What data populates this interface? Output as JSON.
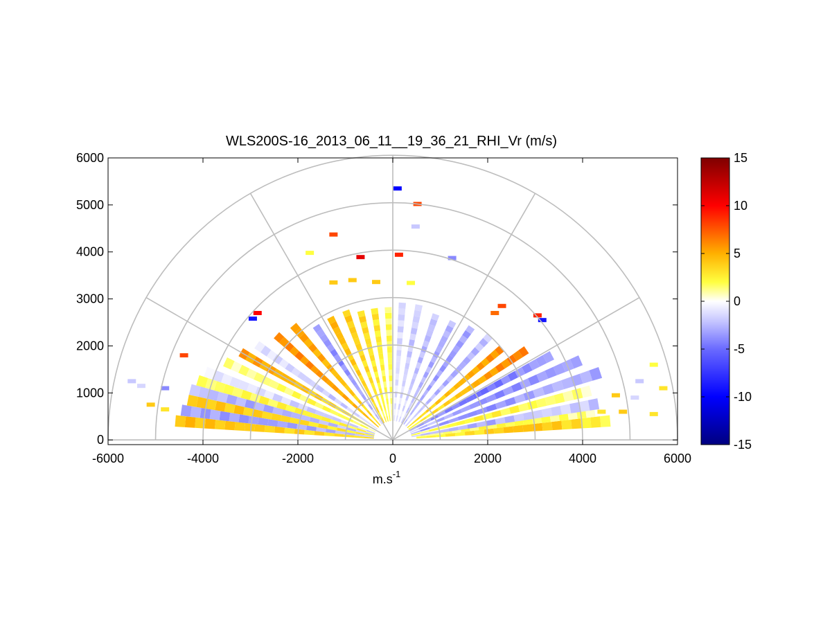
{
  "chart_data": {
    "type": "heatmap",
    "subtype": "polar-rhi",
    "title": "WLS200S-16_2013_06_11__19_36_21_RHI_Vr (m/s)",
    "xlabel": "m.s",
    "xlabel_superscript": "-1",
    "ylabel": "",
    "xlim": [
      -6000,
      6000
    ],
    "ylim": [
      -100,
      6000
    ],
    "x_ticks": [
      -6000,
      -4000,
      -2000,
      0,
      2000,
      4000,
      6000
    ],
    "x_tick_labels": [
      "-6000",
      "-4000",
      "-2000",
      "0",
      "2000",
      "4000",
      "6000"
    ],
    "y_ticks": [
      0,
      1000,
      2000,
      3000,
      4000,
      5000,
      6000
    ],
    "y_tick_labels": [
      "0",
      "1000",
      "2000",
      "3000",
      "4000",
      "5000",
      "6000"
    ],
    "polar_grid": {
      "range_rings": [
        1000,
        2000,
        3000,
        4000,
        5000,
        6000
      ],
      "spoke_angles_deg": [
        0,
        30,
        60,
        90,
        120,
        150,
        180
      ]
    },
    "colorbar": {
      "range": [
        -15,
        15
      ],
      "ticks": [
        15,
        10,
        5,
        0,
        -5,
        -10,
        -15
      ],
      "tick_labels": [
        "15",
        "10",
        "5",
        "0",
        "-5",
        "-10",
        "-15"
      ],
      "colors": {
        "-15": "#00007f",
        "-10": "#0000ff",
        "-5": "#6a6aff",
        "-2": "#c8c8ff",
        "0": "#ffffff",
        "2": "#ffff40",
        "5": "#ffb000",
        "10": "#ff0000",
        "15": "#7f0000"
      }
    },
    "rays": [
      {
        "elevation_deg": 5,
        "range_m": [
          500,
          4600
        ],
        "values": [
          2,
          2.5,
          3,
          4,
          4.5,
          4,
          3,
          2
        ]
      },
      {
        "elevation_deg": 8,
        "range_m": [
          500,
          4300
        ],
        "values": [
          1,
          1.5,
          2,
          2,
          1.5,
          1
        ]
      },
      {
        "elevation_deg": 10,
        "range_m": [
          400,
          4400
        ],
        "values": [
          -2,
          -2.5,
          -3,
          -2,
          -1.5,
          -2
        ]
      },
      {
        "elevation_deg": 14,
        "range_m": [
          400,
          4300
        ],
        "values": [
          1.5,
          2,
          2.5,
          2,
          1.5,
          1
        ]
      },
      {
        "elevation_deg": 18,
        "range_m": [
          400,
          4600
        ],
        "values": [
          -3,
          -3.5,
          -4,
          -3,
          -2.5,
          -3
        ]
      },
      {
        "elevation_deg": 23,
        "range_m": [
          400,
          4300
        ],
        "values": [
          -2,
          -3,
          -4,
          -3.5,
          -3
        ]
      },
      {
        "elevation_deg": 28,
        "range_m": [
          400,
          3800
        ],
        "values": [
          -3,
          -4,
          -5,
          -4,
          -3
        ]
      },
      {
        "elevation_deg": 34,
        "range_m": [
          400,
          3400
        ],
        "values": [
          2,
          3,
          4,
          5,
          6,
          6.5
        ]
      },
      {
        "elevation_deg": 40,
        "range_m": [
          400,
          3000
        ],
        "values": [
          3,
          4,
          5,
          6
        ]
      },
      {
        "elevation_deg": 47,
        "range_m": [
          400,
          3000
        ],
        "values": [
          -1.5,
          -2.5,
          -3,
          -2
        ]
      },
      {
        "elevation_deg": 55,
        "range_m": [
          400,
          2900
        ],
        "values": [
          -2,
          -3,
          -3.5,
          -3
        ]
      },
      {
        "elevation_deg": 63,
        "range_m": [
          400,
          2800
        ],
        "values": [
          -1.5,
          -2.5,
          -3,
          -2.5
        ]
      },
      {
        "elevation_deg": 71,
        "range_m": [
          400,
          2800
        ],
        "values": [
          -1,
          -2,
          -2.5,
          -2
        ]
      },
      {
        "elevation_deg": 79,
        "range_m": [
          400,
          2900
        ],
        "values": [
          -1,
          -1.5,
          -2,
          -1.5
        ]
      },
      {
        "elevation_deg": 86,
        "range_m": [
          400,
          2900
        ],
        "values": [
          -0.8,
          -1.2,
          -1.5
        ]
      },
      {
        "elevation_deg": 92,
        "range_m": [
          400,
          2800
        ],
        "values": [
          1,
          1.5,
          2,
          1.5
        ]
      },
      {
        "elevation_deg": 98,
        "range_m": [
          400,
          2800
        ],
        "values": [
          1.5,
          2,
          2.5,
          3
        ]
      },
      {
        "elevation_deg": 104,
        "range_m": [
          400,
          2800
        ],
        "values": [
          2,
          2.5,
          3,
          3.5
        ]
      },
      {
        "elevation_deg": 110,
        "range_m": [
          400,
          2900
        ],
        "values": [
          2,
          3,
          3.5,
          4
        ]
      },
      {
        "elevation_deg": 117,
        "range_m": [
          400,
          2900
        ],
        "values": [
          3,
          3.5,
          4,
          5
        ]
      },
      {
        "elevation_deg": 124,
        "range_m": [
          400,
          2900
        ],
        "values": [
          -2,
          -3,
          -4,
          -3
        ]
      },
      {
        "elevation_deg": 131,
        "range_m": [
          400,
          3200
        ],
        "values": [
          3,
          4,
          5,
          5.5
        ]
      },
      {
        "elevation_deg": 138,
        "range_m": [
          400,
          3300
        ],
        "values": [
          4,
          5,
          6,
          6
        ]
      },
      {
        "elevation_deg": 145,
        "range_m": [
          400,
          3500
        ],
        "values": [
          -1,
          -2,
          -1.5,
          -1
        ]
      },
      {
        "elevation_deg": 150,
        "range_m": [
          400,
          3700
        ],
        "values": [
          2,
          3,
          4,
          5,
          5.5
        ]
      },
      {
        "elevation_deg": 155,
        "range_m": [
          400,
          3900
        ],
        "values": [
          1.5,
          2,
          1.5,
          1
        ]
      },
      {
        "elevation_deg": 160,
        "range_m": [
          400,
          4200
        ],
        "values": [
          -1.5,
          -2,
          -1,
          -0.8
        ]
      },
      {
        "elevation_deg": 163,
        "range_m": [
          400,
          4300
        ],
        "values": [
          2,
          2.5,
          2,
          1.5
        ]
      },
      {
        "elevation_deg": 166,
        "range_m": [
          400,
          4400
        ],
        "values": [
          -2,
          -2.5,
          -3,
          -2
        ]
      },
      {
        "elevation_deg": 169,
        "range_m": [
          400,
          4400
        ],
        "values": [
          2.5,
          3,
          3.5,
          4,
          4
        ]
      },
      {
        "elevation_deg": 172,
        "range_m": [
          400,
          4500
        ],
        "values": [
          -2,
          -3,
          -3.5,
          -3
        ]
      },
      {
        "elevation_deg": 175,
        "range_m": [
          400,
          4600
        ],
        "values": [
          3,
          3.5,
          4,
          4.5
        ]
      }
    ],
    "scattered_points": [
      {
        "x": 100,
        "y": 5350,
        "v": -10
      },
      {
        "x": 520,
        "y": 5020,
        "v": 8
      },
      {
        "x": 480,
        "y": 4540,
        "v": -2
      },
      {
        "x": -1250,
        "y": 4370,
        "v": 8
      },
      {
        "x": -1750,
        "y": 3980,
        "v": 2
      },
      {
        "x": -680,
        "y": 3890,
        "v": 11
      },
      {
        "x": 130,
        "y": 3940,
        "v": 9
      },
      {
        "x": 1250,
        "y": 3870,
        "v": -4
      },
      {
        "x": -1250,
        "y": 3350,
        "v": 4
      },
      {
        "x": -850,
        "y": 3400,
        "v": 4
      },
      {
        "x": -350,
        "y": 3360,
        "v": 4
      },
      {
        "x": 380,
        "y": 3340,
        "v": 2
      },
      {
        "x": -2850,
        "y": 2700,
        "v": 10
      },
      {
        "x": -2950,
        "y": 2580,
        "v": -9
      },
      {
        "x": 2300,
        "y": 2850,
        "v": 8
      },
      {
        "x": 2150,
        "y": 2700,
        "v": 7
      },
      {
        "x": 3050,
        "y": 2650,
        "v": 9
      },
      {
        "x": 3150,
        "y": 2550,
        "v": -9
      },
      {
        "x": -4400,
        "y": 1800,
        "v": 8
      },
      {
        "x": -5500,
        "y": 1250,
        "v": -2
      },
      {
        "x": -5300,
        "y": 1150,
        "v": -1.5
      },
      {
        "x": -5100,
        "y": 750,
        "v": 4
      },
      {
        "x": -4800,
        "y": 650,
        "v": 3
      },
      {
        "x": -4800,
        "y": 1100,
        "v": -4
      },
      {
        "x": 5200,
        "y": 1250,
        "v": -2
      },
      {
        "x": 5500,
        "y": 1600,
        "v": 2
      },
      {
        "x": 5700,
        "y": 1100,
        "v": 3
      },
      {
        "x": 5100,
        "y": 900,
        "v": -1.5
      },
      {
        "x": 4700,
        "y": 950,
        "v": 4
      },
      {
        "x": 4400,
        "y": 600,
        "v": 3
      },
      {
        "x": 4850,
        "y": 600,
        "v": 4
      },
      {
        "x": 5500,
        "y": 550,
        "v": 3
      }
    ]
  }
}
